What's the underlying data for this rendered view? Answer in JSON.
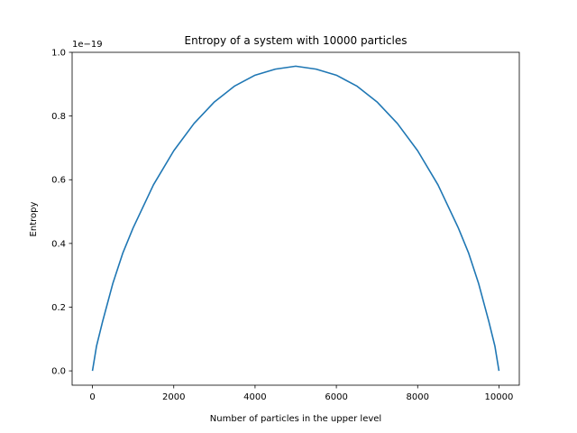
{
  "chart_data": {
    "type": "line",
    "title": "Entropy of a system with 10000 particles",
    "xlabel": "Number of particles in the upper level",
    "ylabel": "Entropy",
    "y_offset_label": "1e−19",
    "xlim": [
      -500,
      10500
    ],
    "ylim": [
      -0.045,
      1.0
    ],
    "x_ticks": [
      0,
      2000,
      4000,
      6000,
      8000,
      10000
    ],
    "x_tick_labels": [
      "0",
      "2000",
      "4000",
      "6000",
      "8000",
      "10000"
    ],
    "y_ticks": [
      0.0,
      0.2,
      0.4,
      0.6,
      0.8,
      1.0
    ],
    "y_tick_labels": [
      "0.0",
      "0.2",
      "0.4",
      "0.6",
      "0.8",
      "1.0"
    ],
    "grid": false,
    "series": [
      {
        "color": "#1f77b4",
        "x": [
          0,
          100,
          250,
          500,
          750,
          1000,
          1500,
          2000,
          2500,
          3000,
          3500,
          4000,
          4500,
          5000,
          5500,
          6000,
          6500,
          7000,
          7500,
          8000,
          8500,
          9000,
          9250,
          9500,
          9750,
          9900,
          10000
        ],
        "y": [
          0.0,
          0.0776,
          0.1551,
          0.2738,
          0.3709,
          0.4487,
          0.5839,
          0.691,
          0.7768,
          0.8443,
          0.8944,
          0.9282,
          0.9473,
          0.9565,
          0.9473,
          0.9282,
          0.8944,
          0.8443,
          0.7768,
          0.691,
          0.5839,
          0.4487,
          0.3709,
          0.2738,
          0.1551,
          0.0776,
          0.0
        ]
      }
    ]
  }
}
